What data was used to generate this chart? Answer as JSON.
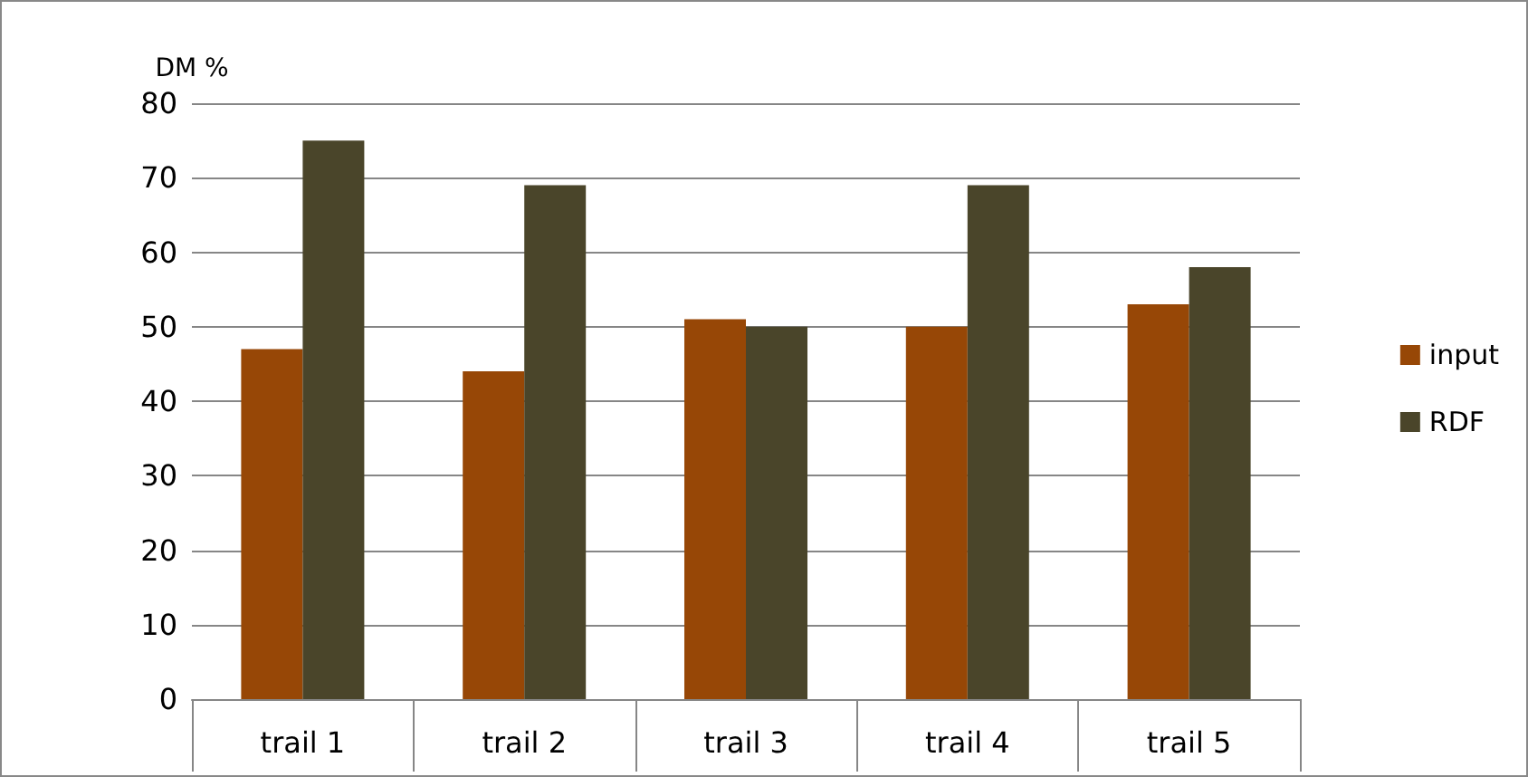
{
  "chart_data": {
    "type": "bar",
    "ylabel": "DM %",
    "categories": [
      "trail 1",
      "trail 2",
      "trail 3",
      "trail 4",
      "trail 5"
    ],
    "series": [
      {
        "name": "input",
        "color": "#974706",
        "values": [
          47,
          44,
          51,
          50,
          53
        ]
      },
      {
        "name": "RDF",
        "color": "#4a452a",
        "values": [
          75,
          69,
          50,
          69,
          58
        ]
      }
    ],
    "ylim": [
      0,
      80
    ],
    "yticks": [
      0,
      10,
      20,
      30,
      40,
      50,
      60,
      70,
      80
    ],
    "grid": "y",
    "legend": "right"
  }
}
